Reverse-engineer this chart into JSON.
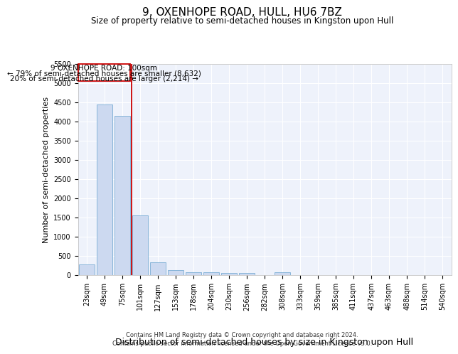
{
  "title": "9, OXENHOPE ROAD, HULL, HU6 7BZ",
  "subtitle": "Size of property relative to semi-detached houses in Kingston upon Hull",
  "xlabel": "Distribution of semi-detached houses by size in Kingston upon Hull",
  "ylabel": "Number of semi-detached properties",
  "categories": [
    "23sqm",
    "49sqm",
    "75sqm",
    "101sqm",
    "127sqm",
    "153sqm",
    "178sqm",
    "204sqm",
    "230sqm",
    "256sqm",
    "282sqm",
    "308sqm",
    "333sqm",
    "359sqm",
    "385sqm",
    "411sqm",
    "437sqm",
    "463sqm",
    "488sqm",
    "514sqm",
    "540sqm"
  ],
  "values": [
    280,
    4430,
    4150,
    1560,
    330,
    130,
    75,
    70,
    60,
    55,
    0,
    70,
    0,
    0,
    0,
    0,
    0,
    0,
    0,
    0,
    0
  ],
  "bar_color": "#ccd9f0",
  "bar_edge_color": "#7aadd4",
  "red_line_x": 2.5,
  "annotation_text_line1": "9 OXENHOPE ROAD: 100sqm",
  "annotation_text_line2": "← 79% of semi-detached houses are smaller (8,632)",
  "annotation_text_line3": "20% of semi-detached houses are larger (2,214) →",
  "ylim": [
    0,
    5500
  ],
  "yticks": [
    0,
    500,
    1000,
    1500,
    2000,
    2500,
    3000,
    3500,
    4000,
    4500,
    5000,
    5500
  ],
  "footer_line1": "Contains HM Land Registry data © Crown copyright and database right 2024.",
  "footer_line2": "Contains public sector information licensed under the Open Government Licence v3.0.",
  "background_color": "#eef2fb",
  "grid_color": "#ffffff",
  "title_fontsize": 11,
  "subtitle_fontsize": 8.5,
  "ylabel_fontsize": 8,
  "xlabel_fontsize": 9,
  "tick_fontsize": 7,
  "annotation_fontsize": 7.5,
  "footer_fontsize": 6
}
